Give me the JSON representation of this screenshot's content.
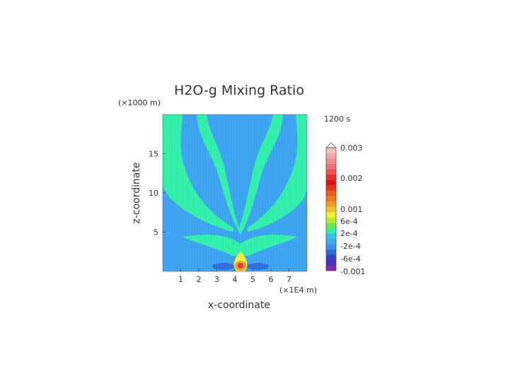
{
  "chart_data": {
    "type": "heatmap",
    "title": "H2O-g Mixing Ratio",
    "time_label": "1200 s",
    "xlabel": "x-coordinate",
    "ylabel": "z-coordinate",
    "x_unit": "(×1E4 m)",
    "y_unit": "(×1000 m)",
    "xlim": [
      0,
      8
    ],
    "ylim": [
      0,
      20
    ],
    "x_ticks": [
      1,
      2,
      3,
      4,
      5,
      6,
      7
    ],
    "y_ticks": [
      5,
      10,
      15
    ],
    "colorbar": {
      "labels": [
        "0.003",
        "0.002",
        "0.001",
        "6e-4",
        "2e-4",
        "-2e-4",
        "-6e-4",
        "-0.001"
      ],
      "colors": [
        "#7b2bb5",
        "#4b2fbf",
        "#2f3fd0",
        "#2f6ae0",
        "#3a8ff0",
        "#3aa8f2",
        "#2ec6e8",
        "#2ff0a8",
        "#6ee84a",
        "#b4f02e",
        "#f5f02e",
        "#f5c02e",
        "#f59a22",
        "#f07a1a",
        "#f05a14",
        "#e8321a",
        "#e41010",
        "#ee2a2a",
        "#f25050",
        "#f47070",
        "#f58a8a",
        "#f5a8a8",
        "#f7c0c0"
      ]
    },
    "colors": {
      "background": "#3aa3f2",
      "band": "#2ff0a8",
      "low": "#2f6ae0",
      "yellow": "#f5f02e",
      "orange": "#f59a22",
      "red": "#e83a2a"
    }
  }
}
